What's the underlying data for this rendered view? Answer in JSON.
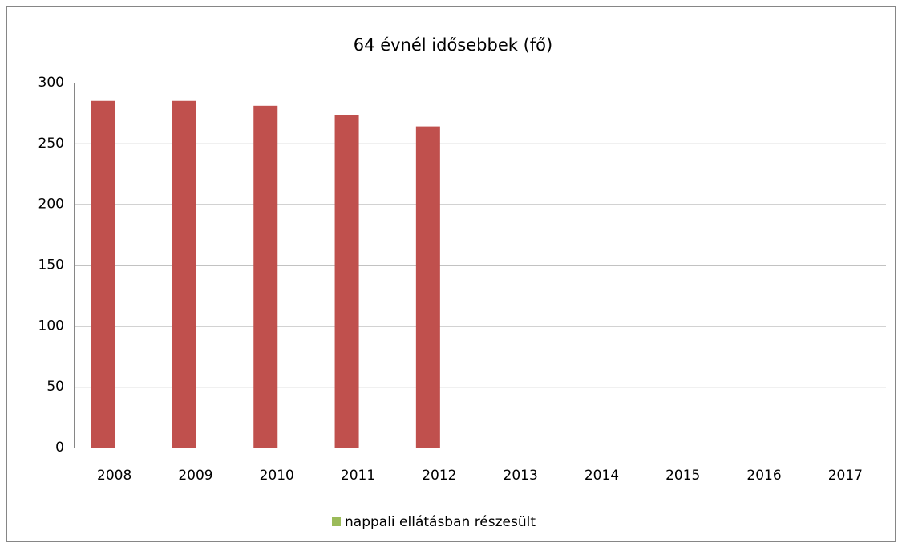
{
  "chart_data": {
    "type": "bar",
    "title": "64 évnél idősebbek (fő)",
    "categories": [
      "2008",
      "2009",
      "2010",
      "2011",
      "2012",
      "2013",
      "2014",
      "2015",
      "2016",
      "2017"
    ],
    "series": [
      {
        "name": "nappali ellátásban részesült",
        "color": "#c0504d",
        "legend_color": "#9bbb59",
        "values": [
          285,
          285,
          281,
          273,
          264,
          null,
          null,
          null,
          null,
          null
        ]
      }
    ],
    "ylim": [
      0,
      300
    ],
    "yticks": [
      0,
      50,
      100,
      150,
      200,
      250,
      300
    ],
    "grid": true,
    "legend": "bottom"
  }
}
